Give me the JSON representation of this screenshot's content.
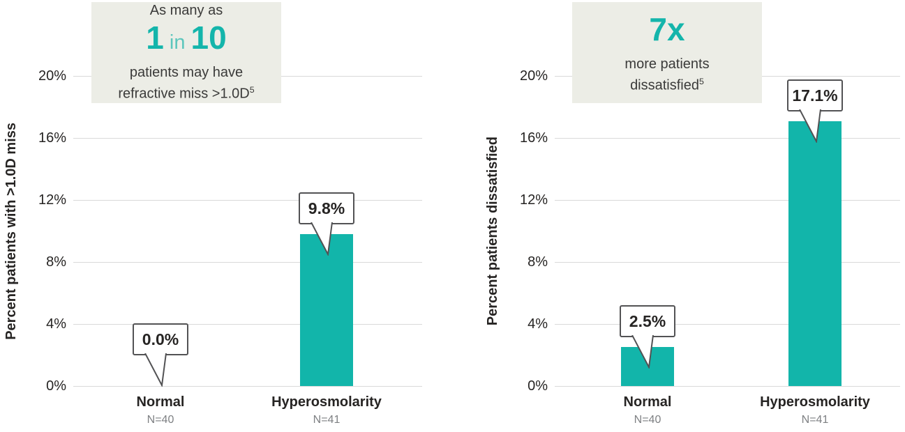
{
  "colors": {
    "bar": "#12b5aa",
    "accent": "#14b5ab",
    "accent_light": "#5cc6bc",
    "highlight_bg": "#ecede6",
    "gridline": "#d9d9d9",
    "axis_text": "#262423",
    "text": "#3a3a39",
    "muted_text": "#7e8083",
    "callout_border": "#525254"
  },
  "chart_data": [
    {
      "type": "bar",
      "highlight": {
        "intro": "As many as",
        "big": [
          {
            "text": "1",
            "emph": true
          },
          {
            "text": " in ",
            "emph": false
          },
          {
            "text": "10",
            "emph": true
          }
        ],
        "lines": [
          "patients may have",
          "refractive miss >1.0D"
        ],
        "footnote": "5"
      },
      "ylabel": "Percent patients with >1.0D miss",
      "yticks": [
        "20%",
        "16%",
        "12%",
        "8%",
        "4%",
        "0%"
      ],
      "ylim": [
        0,
        20
      ],
      "grid": true,
      "legend": "none",
      "categories": [
        "Normal",
        "Hyperosmolarity"
      ],
      "n_labels": [
        "N=40",
        "N=41"
      ],
      "values": [
        0.0,
        9.8
      ],
      "value_labels": [
        "0.0%",
        "9.8%"
      ]
    },
    {
      "type": "bar",
      "highlight": {
        "intro": "",
        "big": [
          {
            "text": "7x",
            "emph": true
          }
        ],
        "lines": [
          "more patients",
          "dissatisfied"
        ],
        "footnote": "5"
      },
      "ylabel": "Percent patients dissatisfied",
      "yticks": [
        "20%",
        "16%",
        "12%",
        "8%",
        "4%",
        "0%"
      ],
      "ylim": [
        0,
        20
      ],
      "grid": true,
      "legend": "none",
      "categories": [
        "Normal",
        "Hyperosmolarity"
      ],
      "n_labels": [
        "N=40",
        "N=41"
      ],
      "values": [
        2.5,
        17.1
      ],
      "value_labels": [
        "2.5%",
        "17.1%"
      ]
    }
  ]
}
